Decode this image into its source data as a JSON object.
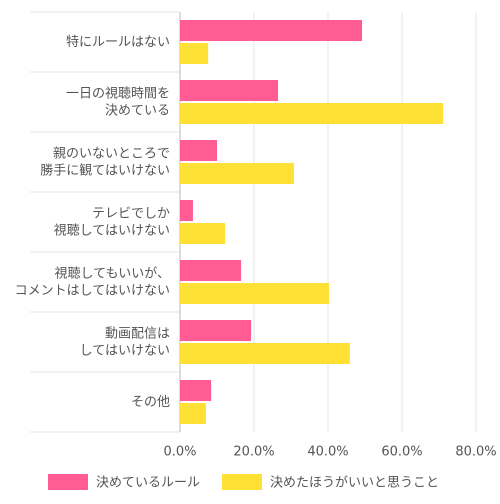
{
  "chart_data": {
    "type": "hbar",
    "categories": [
      [
        "特にルールはない"
      ],
      [
        "一日の視聴時間を",
        "決めている"
      ],
      [
        "親のいないところで",
        "勝手に観てはいけない"
      ],
      [
        "テレビでしか",
        "視聴してはいけない"
      ],
      [
        "視聴してもいいが、",
        "コメントはしてはいけない"
      ],
      [
        "動画配信は",
        "してはいけない"
      ],
      [
        "その他"
      ]
    ],
    "series": [
      {
        "name": "決めているルール",
        "color": "#ff5c93",
        "values": [
          49.2,
          26.5,
          10,
          3.5,
          16.5,
          19.2,
          8.4
        ]
      },
      {
        "name": "決めたほうがいいと思うこと",
        "color": "#ffe135",
        "values": [
          7.6,
          71.1,
          30.8,
          12.2,
          40.3,
          45.9,
          7
        ]
      }
    ],
    "xlim": [
      0,
      80
    ],
    "xticks": [
      {
        "value": 0,
        "label": "0.0%"
      },
      {
        "value": 20,
        "label": "20.0%"
      },
      {
        "value": 40,
        "label": "40.0%"
      },
      {
        "value": 60,
        "label": "60.0%"
      },
      {
        "value": 80,
        "label": "80.0%"
      }
    ],
    "grid": true,
    "legend": "bottom"
  }
}
